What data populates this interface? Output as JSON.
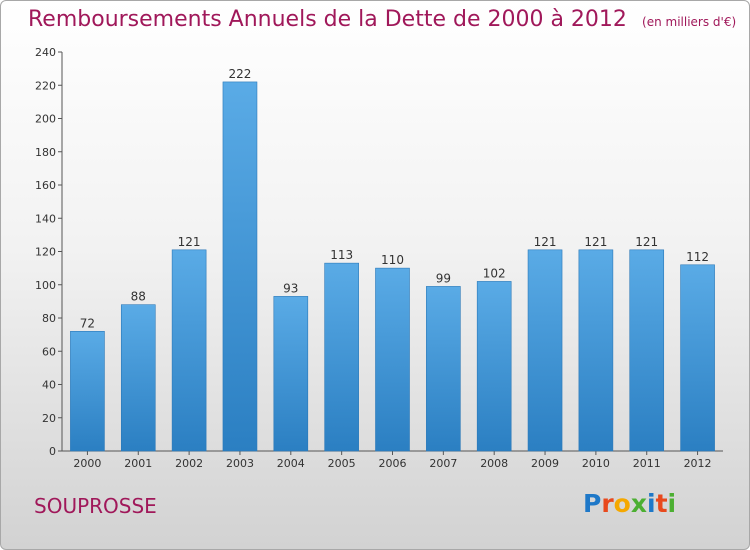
{
  "header": {
    "title": "Remboursements Annuels de la Dette de 2000 à 2012",
    "unit": "(en milliers d'€)"
  },
  "footer": {
    "commune": "SOUPROSSE",
    "logo": "Proxiti",
    "logo_colors": [
      "#1e78c8",
      "#e8491d",
      "#f5a800",
      "#4caf32",
      "#1e78c8",
      "#e8491d",
      "#4caf32"
    ]
  },
  "chart_data": {
    "type": "bar",
    "categories": [
      "2000",
      "2001",
      "2002",
      "2003",
      "2004",
      "2005",
      "2006",
      "2007",
      "2008",
      "2009",
      "2010",
      "2011",
      "2012"
    ],
    "values": [
      72,
      88,
      121,
      222,
      93,
      113,
      110,
      99,
      102,
      121,
      121,
      121,
      112
    ],
    "title": "Remboursements Annuels de la Dette de 2000 à 2012",
    "unit": "(en milliers d'€)",
    "ylim": [
      0,
      240
    ],
    "yticks": [
      0,
      20,
      40,
      60,
      80,
      100,
      120,
      140,
      160,
      180,
      200,
      220,
      240
    ],
    "grid": false,
    "legend": "none",
    "colors": {
      "bar_top": "#5aabe6",
      "bar_bottom": "#2b7fc2",
      "bar_edge": "#2a78b8"
    }
  }
}
